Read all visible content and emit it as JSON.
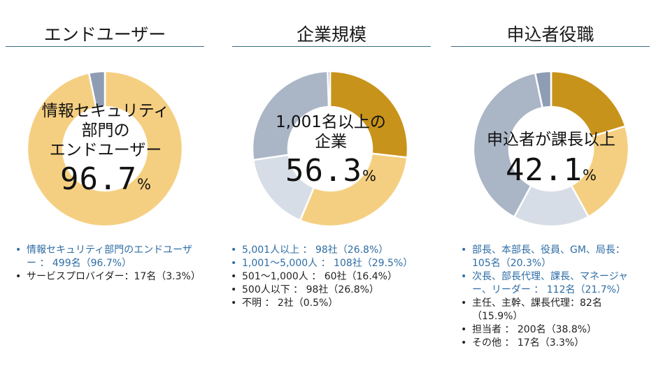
{
  "chart_data": [
    {
      "type": "pie",
      "title": "エンドユーザー",
      "center_text": [
        "情報セキュリティ",
        "部門の",
        "エンドユーザー"
      ],
      "center_value": "96.7",
      "center_unit": "%",
      "slices": [
        {
          "label": "情報セキュリティ部門のエンドユーザー",
          "count": 499,
          "percent": 96.7,
          "color": "#f5cf81"
        },
        {
          "label": "サービスプロバイダー",
          "count": 17,
          "percent": 3.3,
          "color": "#8e9db3"
        }
      ],
      "legend": [
        {
          "text": "情報セキュリティ部門のエンドユーザー ： 499名（96.7%）",
          "color": "#2e6da4"
        },
        {
          "text": "サービスプロバイダー：17名（3.3%）",
          "color": "#222222"
        }
      ]
    },
    {
      "type": "pie",
      "title": "企業規模",
      "center_text": [
        "1,001名以上の",
        "企業"
      ],
      "center_value": "56.3",
      "center_unit": "%",
      "slices": [
        {
          "label": "5,001人以上",
          "count": 98,
          "percent": 26.8,
          "color": "#c8931a"
        },
        {
          "label": "1,001～5,000人",
          "count": 108,
          "percent": 29.5,
          "color": "#f5cf81"
        },
        {
          "label": "501～1,000人",
          "count": 60,
          "percent": 16.4,
          "color": "#d7dde6"
        },
        {
          "label": "500人以下",
          "count": 98,
          "percent": 26.8,
          "color": "#aab5c6"
        },
        {
          "label": "不明",
          "count": 2,
          "percent": 0.5,
          "color": "#8e9db3"
        }
      ],
      "legend": [
        {
          "text": "5,001人以上 ： 98社（26.8%）",
          "color": "#2e6da4"
        },
        {
          "text": "1,001～5,000人 ： 108社（29.5%）",
          "color": "#2e6da4"
        },
        {
          "text": "501～1,000人 ： 60社（16.4%）",
          "color": "#222222"
        },
        {
          "text": "500人以下 ： 98社（26.8%）",
          "color": "#222222"
        },
        {
          "text": "不明 ： 2社（0.5%）",
          "color": "#222222"
        }
      ]
    },
    {
      "type": "pie",
      "title": "申込者役職",
      "center_text": [
        "申込者が課長以上"
      ],
      "center_value": "42.1",
      "center_unit": "%",
      "slices": [
        {
          "label": "部長、本部長、役員、GM、局長",
          "count": 105,
          "percent": 20.3,
          "color": "#c8931a"
        },
        {
          "label": "次長、部長代理、課長、マネージャー、リーダー",
          "count": 112,
          "percent": 21.7,
          "color": "#f5cf81"
        },
        {
          "label": "主任、主幹、課長代理",
          "count": 82,
          "percent": 15.9,
          "color": "#d7dde6"
        },
        {
          "label": "担当者",
          "count": 200,
          "percent": 38.8,
          "color": "#aab5c6"
        },
        {
          "label": "その他",
          "count": 17,
          "percent": 3.3,
          "color": "#8e9db3"
        }
      ],
      "legend": [
        {
          "text": "部長、本部長、役員、GM、局長：105名（20.3%）",
          "color": "#2e6da4"
        },
        {
          "text": "次長、部長代理、課長、マネージャー、リーダー ： 112名（21.7%）",
          "color": "#2e6da4"
        },
        {
          "text": "主任、主幹、課長代理：82名（15.9%）",
          "color": "#222222"
        },
        {
          "text": "担当者 ： 200名（38.8%）",
          "color": "#222222"
        },
        {
          "text": "その他 ： 17名（3.3%）",
          "color": "#222222"
        }
      ]
    }
  ]
}
